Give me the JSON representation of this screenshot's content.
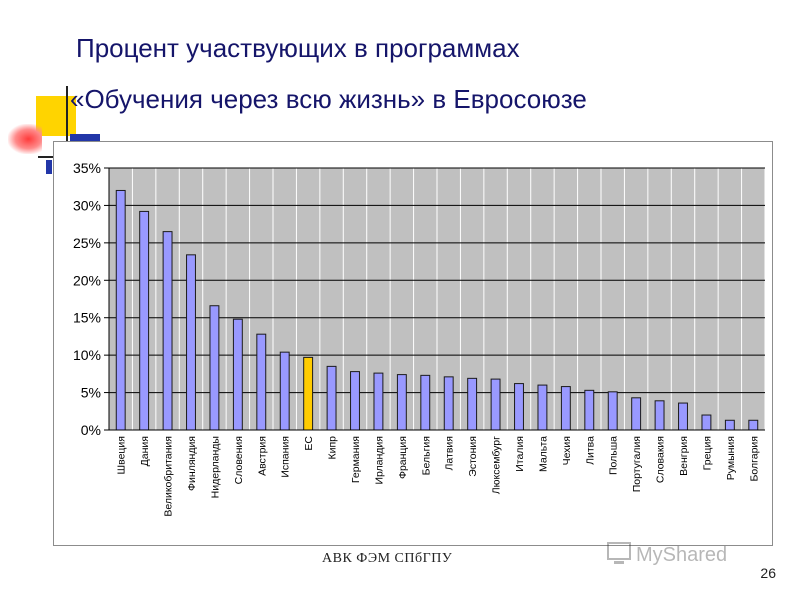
{
  "slide": {
    "title_line1": "Процент участвующих в программах",
    "title_line2": "«Обучения через всю жизнь» в Евросоюзе",
    "footer": "АВК   ФЭМ   СПбГПУ",
    "page_number": "26",
    "watermark": "MyShared"
  },
  "chart_data": {
    "type": "bar",
    "title": "",
    "xlabel": "",
    "ylabel": "",
    "ylim": [
      0,
      35
    ],
    "yticks": [
      "0%",
      "5%",
      "10%",
      "15%",
      "20%",
      "25%",
      "30%",
      "35%"
    ],
    "grid": true,
    "legend": "none",
    "colors": {
      "default": "#9999ff",
      "highlight": "#ffcc00",
      "plot_bg": "#c0c0c0",
      "edge": "#1a1a1a"
    },
    "highlight_category": "ЕС",
    "categories": [
      "Швеция",
      "Дания",
      "Великобритания",
      "Финляндия",
      "Нидерланды",
      "Словения",
      "Австрия",
      "Испания",
      "ЕС",
      "Кипр",
      "Германия",
      "Ирландия",
      "Франция",
      "Бельгия",
      "Латвия",
      "Эстония",
      "Люксембург",
      "Италия",
      "Мальта",
      "Чехия",
      "Литва",
      "Польша",
      "Португалия",
      "Словакия",
      "Венгрия",
      "Греция",
      "Румыния",
      "Болгария"
    ],
    "values": [
      32.0,
      29.2,
      26.5,
      23.4,
      16.6,
      14.8,
      12.8,
      10.4,
      9.7,
      8.5,
      7.8,
      7.6,
      7.4,
      7.3,
      7.1,
      6.9,
      6.8,
      6.2,
      6.0,
      5.8,
      5.3,
      5.1,
      4.3,
      3.9,
      3.6,
      2.0,
      1.3,
      1.3
    ]
  }
}
